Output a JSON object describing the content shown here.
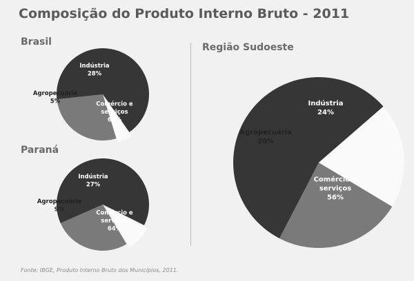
{
  "page": {
    "title": "Composição do Produto Interno Bruto - 2011",
    "source": "Fonte: IBGE, Produto Interno Bruto dos Municípios, 2011."
  },
  "colors": {
    "industria": "#7a7a7a",
    "comercio": "#363636",
    "agro": "#fafafa",
    "background": "#f1f1f1"
  },
  "chart_data": [
    {
      "type": "pie",
      "title": "Brasil",
      "slices": [
        {
          "label": "Indústria",
          "value": 28,
          "value_label": "28%",
          "color": "#7a7a7a"
        },
        {
          "label": "Comércio e serviços",
          "value": 67,
          "value_label": "67%",
          "color": "#363636"
        },
        {
          "label": "Agropecuária",
          "value": 5,
          "value_label": "5%",
          "color": "#fafafa"
        }
      ]
    },
    {
      "type": "pie",
      "title": "Paraná",
      "slices": [
        {
          "label": "Indústria",
          "value": 27,
          "value_label": "27%",
          "color": "#7a7a7a"
        },
        {
          "label": "Comércio e serviços",
          "value": 64,
          "value_label": "64%",
          "color": "#363636"
        },
        {
          "label": "Agropecuária",
          "value": 9,
          "value_label": "9%",
          "color": "#fafafa"
        }
      ]
    },
    {
      "type": "pie",
      "title": "Região Sudoeste",
      "slices": [
        {
          "label": "Indústria",
          "value": 24,
          "value_label": "24%",
          "color": "#7a7a7a"
        },
        {
          "label": "Comércio e serviços",
          "value": 56,
          "value_label": "56%",
          "color": "#363636"
        },
        {
          "label": "Agropecuária",
          "value": 20,
          "value_label": "20%",
          "color": "#fafafa"
        }
      ]
    }
  ]
}
